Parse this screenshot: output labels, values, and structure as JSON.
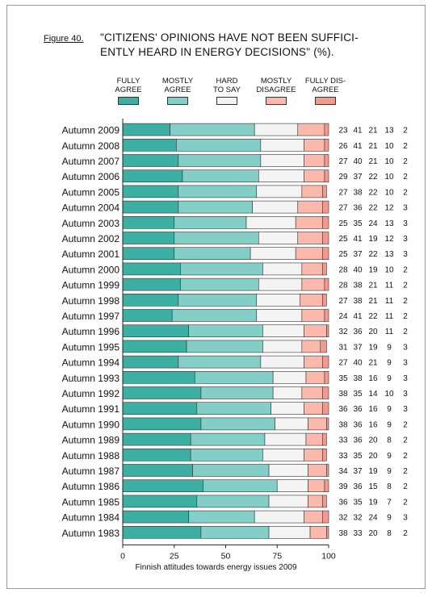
{
  "figure": {
    "label": "Figure 40.",
    "title_line1": "\"CITIZENS' OPINIONS HAVE NOT BEEN SUFFICI-",
    "title_line2": "ENTLY HEARD IN ENERGY DECISIONS\" (%).",
    "footer": "Finnish attitudes towards energy issues 2009"
  },
  "legend": [
    {
      "label_line1": "FULLY",
      "label_line2": "AGREE",
      "color": "#3aafa2"
    },
    {
      "label_line1": "MOSTLY",
      "label_line2": "AGREE",
      "color": "#84cec8"
    },
    {
      "label_line1": "HARD",
      "label_line2": "TO SAY",
      "color": "#f3f3f3"
    },
    {
      "label_line1": "MOSTLY",
      "label_line2": "DISAGREE",
      "color": "#fbb9ac"
    },
    {
      "label_line1": "FULLY DIS-",
      "label_line2": "AGREE",
      "color": "#f19a90"
    }
  ],
  "chart_data": {
    "type": "bar",
    "orientation": "horizontal",
    "stacked": true,
    "xlim": [
      0,
      100
    ],
    "xticks": [
      0,
      25,
      50,
      75,
      100
    ],
    "categories": [
      "Autumn 2009",
      "Autumn 2008",
      "Autumn 2007",
      "Autumn 2006",
      "Autumn 2005",
      "Autumn 2004",
      "Autumn 2003",
      "Autumn 2002",
      "Autumn 2001",
      "Autumn 2000",
      "Autumn 1999",
      "Autumn 1998",
      "Autumn 1997",
      "Autumn 1996",
      "Autumn 1995",
      "Autumn 1994",
      "Autumn 1993",
      "Autumn 1992",
      "Autumn 1991",
      "Autumn 1990",
      "Autumn 1989",
      "Autumn 1988",
      "Autumn 1987",
      "Autumn 1986",
      "Autumn 1985",
      "Autumn 1984",
      "Autumn 1983"
    ],
    "series": [
      {
        "name": "FULLY AGREE",
        "color": "#3aafa2",
        "values": [
          23,
          26,
          27,
          29,
          27,
          27,
          25,
          25,
          25,
          28,
          28,
          27,
          24,
          32,
          31,
          27,
          35,
          38,
          36,
          38,
          33,
          33,
          34,
          39,
          36,
          32,
          38
        ]
      },
      {
        "name": "MOSTLY AGREE",
        "color": "#84cec8",
        "values": [
          41,
          41,
          40,
          37,
          38,
          36,
          35,
          41,
          37,
          40,
          38,
          38,
          41,
          36,
          37,
          40,
          38,
          35,
          36,
          36,
          36,
          35,
          37,
          36,
          35,
          32,
          33
        ]
      },
      {
        "name": "HARD TO SAY",
        "color": "#f3f3f3",
        "values": [
          21,
          21,
          21,
          22,
          22,
          22,
          24,
          19,
          22,
          19,
          21,
          21,
          22,
          20,
          19,
          21,
          16,
          14,
          16,
          16,
          20,
          20,
          19,
          15,
          19,
          24,
          20
        ]
      },
      {
        "name": "MOSTLY DISAGREE",
        "color": "#fbb9ac",
        "values": [
          13,
          10,
          10,
          10,
          10,
          12,
          13,
          12,
          13,
          10,
          11,
          11,
          11,
          11,
          9,
          9,
          9,
          10,
          9,
          9,
          8,
          9,
          9,
          8,
          7,
          9,
          8
        ]
      },
      {
        "name": "FULLY DISAGREE",
        "color": "#f19a90",
        "values": [
          2,
          2,
          2,
          2,
          2,
          3,
          3,
          3,
          3,
          2,
          2,
          2,
          2,
          2,
          3,
          3,
          3,
          3,
          3,
          2,
          2,
          2,
          2,
          2,
          2,
          3,
          2
        ]
      }
    ]
  }
}
